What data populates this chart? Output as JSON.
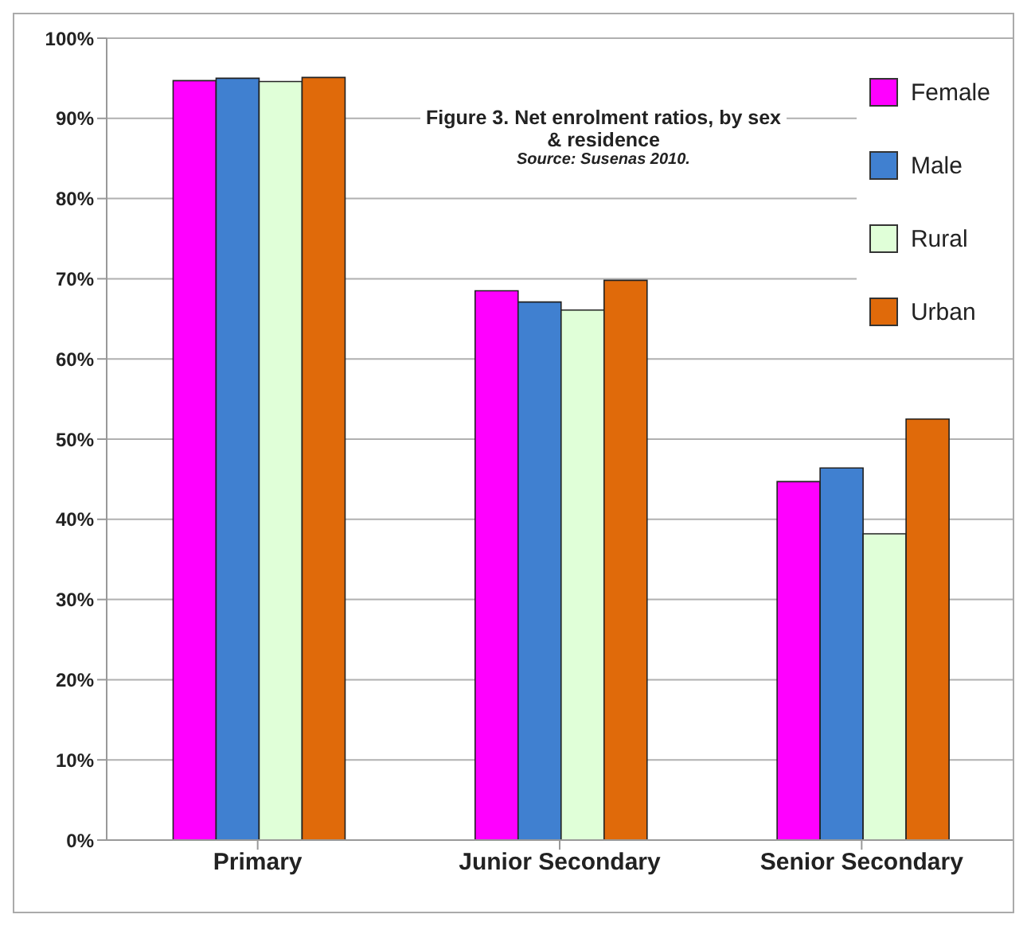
{
  "chart_data": {
    "type": "bar",
    "title": "Figure 3. Net enrolment ratios, by sex & residence",
    "annotations": [
      "Source: Susenas 2010."
    ],
    "categories": [
      "Primary",
      "Junior Secondary",
      "Senior Secondary"
    ],
    "series": [
      {
        "name": "Female",
        "color": "#ff00ff",
        "values": [
          94.7,
          68.5,
          44.7
        ]
      },
      {
        "name": "Male",
        "color": "#4080d0",
        "values": [
          95.0,
          67.1,
          46.4
        ]
      },
      {
        "name": "Rural",
        "color": "#e0ffd8",
        "values": [
          94.6,
          66.1,
          38.2
        ]
      },
      {
        "name": "Urban",
        "color": "#e06a0a",
        "values": [
          95.1,
          69.8,
          52.5
        ]
      }
    ],
    "ylim": [
      0,
      100
    ],
    "yticks": [
      {
        "value": 0,
        "label": "0%"
      },
      {
        "value": 10,
        "label": "10%"
      },
      {
        "value": 20,
        "label": "20%"
      },
      {
        "value": 30,
        "label": "30%"
      },
      {
        "value": 40,
        "label": "40%"
      },
      {
        "value": 50,
        "label": "50%"
      },
      {
        "value": 60,
        "label": "60%"
      },
      {
        "value": 70,
        "label": "70%"
      },
      {
        "value": 80,
        "label": "80%"
      },
      {
        "value": 90,
        "label": "90%"
      },
      {
        "value": 100,
        "label": "100%"
      }
    ],
    "grid": "y",
    "legend": "top right"
  }
}
